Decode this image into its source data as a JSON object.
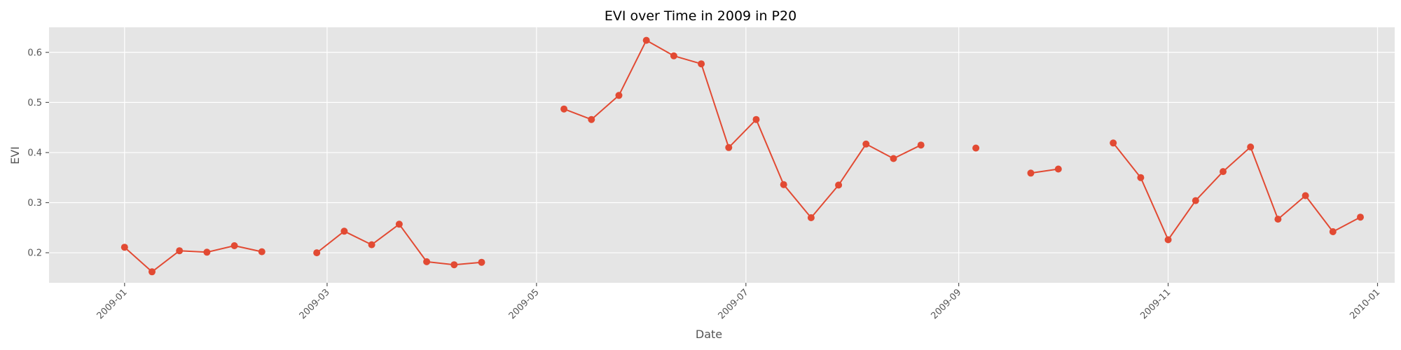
{
  "chart_data": {
    "type": "line",
    "title": "EVI over Time in 2009 in P20",
    "xlabel": "Date",
    "ylabel": "EVI",
    "x_axis": {
      "type": "date",
      "range": [
        "2008-12-10",
        "2010-01-06"
      ],
      "ticks": [
        "2009-01-01",
        "2009-03-01",
        "2009-05-01",
        "2009-07-01",
        "2009-09-01",
        "2009-11-01",
        "2010-01-01"
      ],
      "tick_labels": [
        "2009-01",
        "2009-03",
        "2009-05",
        "2009-07",
        "2009-09",
        "2009-11",
        "2010-01"
      ]
    },
    "y_axis": {
      "range": [
        0.14,
        0.65
      ],
      "ticks": [
        0.2,
        0.3,
        0.4,
        0.5,
        0.6
      ],
      "tick_labels": [
        "0.2",
        "0.3",
        "0.4",
        "0.5",
        "0.6"
      ]
    },
    "grid": true,
    "legend": "none",
    "style": {
      "background": "#e5e5e5",
      "grid_color": "#ffffff",
      "line_color": "#e24a33"
    },
    "series": [
      {
        "points": [
          {
            "x": "2009-01-01",
            "y": 0.211
          },
          {
            "x": "2009-01-09",
            "y": 0.162
          },
          {
            "x": "2009-01-17",
            "y": 0.204
          },
          {
            "x": "2009-01-25",
            "y": 0.201
          },
          {
            "x": "2009-02-02",
            "y": 0.214
          },
          {
            "x": "2009-02-10",
            "y": 0.202
          },
          {
            "x": "2009-02-18",
            "y": null
          },
          {
            "x": "2009-02-26",
            "y": 0.2
          },
          {
            "x": "2009-03-06",
            "y": 0.243
          },
          {
            "x": "2009-03-14",
            "y": 0.216
          },
          {
            "x": "2009-03-22",
            "y": 0.257
          },
          {
            "x": "2009-03-30",
            "y": 0.182
          },
          {
            "x": "2009-04-07",
            "y": 0.176
          },
          {
            "x": "2009-04-15",
            "y": 0.181
          },
          {
            "x": "2009-04-23",
            "y": null
          },
          {
            "x": "2009-05-01",
            "y": null
          },
          {
            "x": "2009-05-09",
            "y": 0.487
          },
          {
            "x": "2009-05-17",
            "y": 0.466
          },
          {
            "x": "2009-05-25",
            "y": 0.514
          },
          {
            "x": "2009-06-02",
            "y": 0.624
          },
          {
            "x": "2009-06-10",
            "y": 0.593
          },
          {
            "x": "2009-06-18",
            "y": 0.577
          },
          {
            "x": "2009-06-26",
            "y": 0.41
          },
          {
            "x": "2009-07-04",
            "y": 0.466
          },
          {
            "x": "2009-07-12",
            "y": 0.336
          },
          {
            "x": "2009-07-20",
            "y": 0.27
          },
          {
            "x": "2009-07-28",
            "y": 0.335
          },
          {
            "x": "2009-08-05",
            "y": 0.417
          },
          {
            "x": "2009-08-13",
            "y": 0.388
          },
          {
            "x": "2009-08-21",
            "y": 0.415
          },
          {
            "x": "2009-08-29",
            "y": null
          },
          {
            "x": "2009-09-06",
            "y": 0.409
          },
          {
            "x": "2009-09-14",
            "y": null
          },
          {
            "x": "2009-09-22",
            "y": 0.359
          },
          {
            "x": "2009-09-30",
            "y": 0.367
          },
          {
            "x": "2009-10-08",
            "y": null
          },
          {
            "x": "2009-10-16",
            "y": 0.419
          },
          {
            "x": "2009-10-24",
            "y": 0.35
          },
          {
            "x": "2009-11-01",
            "y": 0.226
          },
          {
            "x": "2009-11-09",
            "y": 0.304
          },
          {
            "x": "2009-11-17",
            "y": 0.362
          },
          {
            "x": "2009-11-25",
            "y": 0.411
          },
          {
            "x": "2009-12-03",
            "y": 0.267
          },
          {
            "x": "2009-12-11",
            "y": 0.314
          },
          {
            "x": "2009-12-19",
            "y": 0.242
          },
          {
            "x": "2009-12-27",
            "y": 0.271
          }
        ]
      }
    ]
  }
}
